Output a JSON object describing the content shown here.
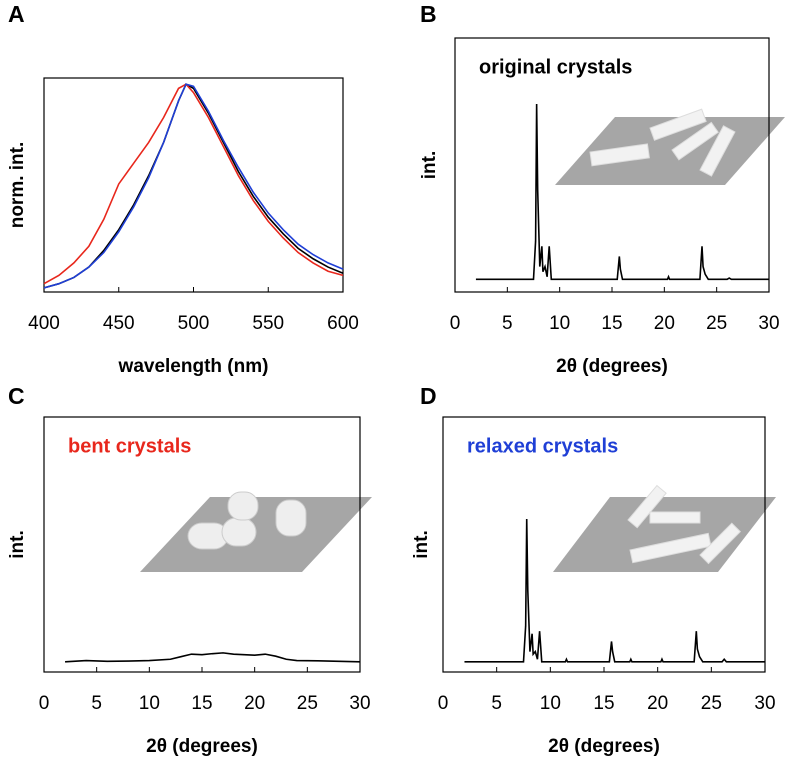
{
  "chart_data": [
    {
      "type": "line",
      "label": "A",
      "xlabel": "wavelength (nm)",
      "ylabel": "norm. int.",
      "xlim": [
        400,
        600
      ],
      "xticks": [
        400,
        450,
        500,
        550,
        600
      ],
      "ylim": [
        0,
        1.03
      ],
      "x": [
        400,
        410,
        420,
        430,
        440,
        450,
        460,
        470,
        480,
        490,
        495,
        500,
        510,
        520,
        530,
        540,
        550,
        560,
        570,
        580,
        590,
        600
      ],
      "series": [
        {
          "color": "#000000",
          "values": [
            0.02,
            0.04,
            0.07,
            0.12,
            0.2,
            0.3,
            0.42,
            0.56,
            0.72,
            0.92,
            1.0,
            0.98,
            0.86,
            0.72,
            0.58,
            0.46,
            0.36,
            0.28,
            0.21,
            0.16,
            0.12,
            0.09
          ]
        },
        {
          "color": "#e8271c",
          "values": [
            0.04,
            0.08,
            0.14,
            0.22,
            0.35,
            0.52,
            0.62,
            0.72,
            0.84,
            0.98,
            1.0,
            0.96,
            0.84,
            0.7,
            0.56,
            0.44,
            0.34,
            0.26,
            0.19,
            0.14,
            0.1,
            0.08
          ]
        },
        {
          "color": "#1f3fd6",
          "values": [
            0.02,
            0.04,
            0.07,
            0.12,
            0.19,
            0.29,
            0.41,
            0.55,
            0.72,
            0.92,
            1.0,
            0.99,
            0.87,
            0.73,
            0.6,
            0.48,
            0.38,
            0.3,
            0.23,
            0.18,
            0.14,
            0.11
          ]
        }
      ]
    },
    {
      "type": "line",
      "label": "B",
      "xlabel": "2θ (degrees)",
      "ylabel": "int.",
      "annotation": {
        "text": "original crystals",
        "color": "#000000"
      },
      "xlim": [
        0,
        30
      ],
      "xticks": [
        0,
        5,
        10,
        15,
        20,
        25,
        30
      ],
      "ylim": [
        0,
        1
      ],
      "x": [
        2,
        7.5,
        7.7,
        7.8,
        7.9,
        8.1,
        8.3,
        8.4,
        8.6,
        8.8,
        9.0,
        9.2,
        15.5,
        15.7,
        15.8,
        16.0,
        20.3,
        20.4,
        20.5,
        23.4,
        23.6,
        23.7,
        23.9,
        24.2,
        26.0,
        26.2,
        26.4,
        30
      ],
      "series": [
        {
          "color": "#000000",
          "values": [
            0.05,
            0.05,
            0.2,
            0.74,
            0.4,
            0.1,
            0.18,
            0.08,
            0.1,
            0.06,
            0.18,
            0.05,
            0.05,
            0.14,
            0.09,
            0.05,
            0.05,
            0.06,
            0.05,
            0.05,
            0.18,
            0.1,
            0.07,
            0.05,
            0.05,
            0.055,
            0.05,
            0.05
          ]
        }
      ]
    },
    {
      "type": "line",
      "label": "C",
      "xlabel": "2θ (degrees)",
      "ylabel": "int.",
      "annotation": {
        "text": "bent crystals",
        "color": "#e8271c"
      },
      "xlim": [
        0,
        30
      ],
      "xticks": [
        0,
        5,
        10,
        15,
        20,
        25,
        30
      ],
      "ylim": [
        0,
        1
      ],
      "x": [
        2,
        4,
        6,
        8,
        10,
        12,
        13,
        14,
        15,
        16,
        17,
        18,
        19,
        20,
        21,
        22,
        23,
        24,
        26,
        28,
        30
      ],
      "series": [
        {
          "color": "#000000",
          "values": [
            0.04,
            0.045,
            0.042,
            0.043,
            0.045,
            0.05,
            0.06,
            0.07,
            0.068,
            0.072,
            0.075,
            0.07,
            0.068,
            0.066,
            0.07,
            0.062,
            0.05,
            0.045,
            0.044,
            0.042,
            0.04
          ]
        }
      ]
    },
    {
      "type": "line",
      "label": "D",
      "xlabel": "2θ (degrees)",
      "ylabel": "int.",
      "annotation": {
        "text": "relaxed crystals",
        "color": "#1f3fd6"
      },
      "xlim": [
        0,
        30
      ],
      "xticks": [
        0,
        5,
        10,
        15,
        20,
        25,
        30
      ],
      "ylim": [
        0,
        1
      ],
      "x": [
        2,
        7.5,
        7.7,
        7.8,
        7.9,
        8.1,
        8.3,
        8.4,
        8.6,
        8.8,
        9.0,
        9.2,
        11.4,
        11.5,
        11.6,
        15.5,
        15.7,
        15.8,
        16.0,
        17.4,
        17.5,
        17.6,
        20.3,
        20.4,
        20.5,
        23.4,
        23.6,
        23.7,
        23.9,
        24.2,
        26.0,
        26.2,
        26.4,
        30
      ],
      "series": [
        {
          "color": "#000000",
          "values": [
            0.04,
            0.04,
            0.18,
            0.6,
            0.32,
            0.08,
            0.15,
            0.07,
            0.08,
            0.05,
            0.16,
            0.04,
            0.04,
            0.05,
            0.04,
            0.04,
            0.12,
            0.08,
            0.04,
            0.04,
            0.05,
            0.04,
            0.04,
            0.05,
            0.04,
            0.04,
            0.16,
            0.09,
            0.06,
            0.04,
            0.04,
            0.05,
            0.04,
            0.04
          ]
        }
      ]
    }
  ]
}
